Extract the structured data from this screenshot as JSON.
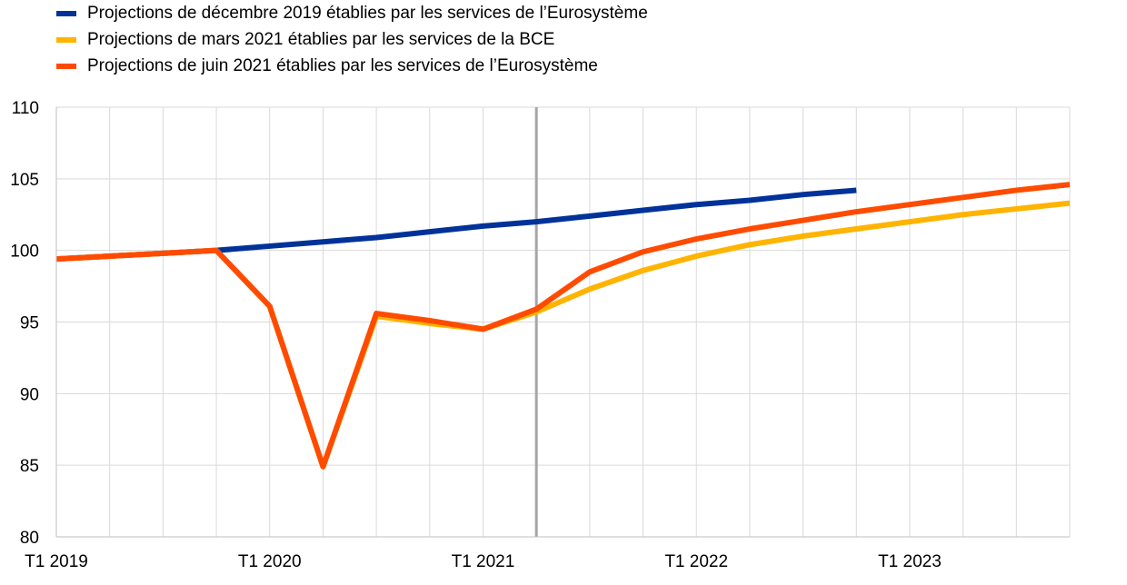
{
  "chart_data": {
    "type": "line",
    "title": "",
    "xlabel": "",
    "ylabel": "",
    "ylim": [
      80,
      110
    ],
    "yticks": [
      80,
      85,
      90,
      95,
      100,
      105,
      110
    ],
    "x": [
      "T1 2019",
      "T2 2019",
      "T3 2019",
      "T4 2019",
      "T1 2020",
      "T2 2020",
      "T3 2020",
      "T4 2020",
      "T1 2021",
      "T2 2021",
      "T3 2021",
      "T4 2021",
      "T1 2022",
      "T2 2022",
      "T3 2022",
      "T4 2022",
      "T1 2023",
      "T2 2023",
      "T3 2023",
      "T4 2023"
    ],
    "xtick_labels": [
      "T1 2019",
      "T1 2020",
      "T1 2021",
      "T1 2022",
      "T1 2023"
    ],
    "vline_at": "T2 2021",
    "grid": true,
    "legend_position": "top-left",
    "series": [
      {
        "name": "Projections de décembre 2019 établies par les services de l’Eurosystème",
        "color": "#003299",
        "values": [
          99.4,
          99.6,
          99.8,
          100.0,
          100.3,
          100.6,
          100.9,
          101.3,
          101.7,
          102.0,
          102.4,
          102.8,
          103.2,
          103.5,
          103.9,
          104.2,
          null,
          null,
          null,
          null
        ]
      },
      {
        "name": "Projections de mars 2021 établies par les services de la BCE",
        "color": "#FFB400",
        "values": [
          99.4,
          99.6,
          99.8,
          100.0,
          96.1,
          84.9,
          95.4,
          94.9,
          94.5,
          95.7,
          97.3,
          98.6,
          99.6,
          100.4,
          101.0,
          101.5,
          102.0,
          102.5,
          102.9,
          103.3
        ]
      },
      {
        "name": "Projections de juin 2021 établies par les services de l’Eurosystème",
        "color": "#FF4B00",
        "values": [
          99.4,
          99.6,
          99.8,
          100.0,
          96.1,
          84.9,
          95.6,
          95.1,
          94.5,
          95.9,
          98.5,
          99.9,
          100.8,
          101.5,
          102.1,
          102.7,
          103.2,
          103.7,
          104.2,
          104.6
        ]
      }
    ]
  }
}
